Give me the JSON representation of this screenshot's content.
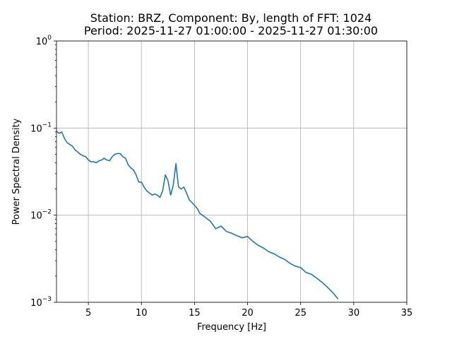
{
  "chart_data": {
    "type": "line",
    "title": "Station: BRZ, Component: By, length of FFT: 1024",
    "subtitle": "Period: 2025-11-27 01:00:00 - 2025-11-27 01:30:00",
    "xlabel": "Frequency [Hz]",
    "ylabel": "Power Spectral Density",
    "xlim": [
      2,
      35
    ],
    "ylim": [
      0.001,
      1
    ],
    "yscale": "log",
    "grid": true,
    "colors": {
      "series": "#1f77b4",
      "grid": "#b0b0b0"
    },
    "xticks": [
      {
        "value": 5,
        "label": "5"
      },
      {
        "value": 10,
        "label": "10"
      },
      {
        "value": 15,
        "label": "15"
      },
      {
        "value": 20,
        "label": "20"
      },
      {
        "value": 25,
        "label": "25"
      },
      {
        "value": 30,
        "label": "30"
      },
      {
        "value": 35,
        "label": "35"
      }
    ],
    "yticks": [
      {
        "value": 0.001,
        "base": "10",
        "exp": "−3"
      },
      {
        "value": 0.01,
        "base": "10",
        "exp": "−2"
      },
      {
        "value": 0.1,
        "base": "10",
        "exp": "−1"
      },
      {
        "value": 1,
        "base": "10",
        "exp": "0"
      }
    ],
    "series": [
      {
        "x": [
          2.0,
          2.25,
          2.5,
          2.75,
          3.0,
          3.25,
          3.5,
          3.75,
          4.0,
          4.25,
          4.5,
          4.75,
          5.0,
          5.25,
          5.5,
          5.75,
          6.0,
          6.25,
          6.5,
          6.75,
          7.0,
          7.25,
          7.5,
          7.75,
          8.0,
          8.25,
          8.5,
          8.75,
          9.0,
          9.25,
          9.5,
          9.75,
          10.0,
          10.25,
          10.5,
          10.75,
          11.0,
          11.25,
          11.5,
          11.75,
          12.0,
          12.25,
          12.5,
          12.75,
          13.0,
          13.25,
          13.5,
          13.75,
          14.0,
          14.25,
          14.5,
          14.75,
          15.0,
          15.25,
          15.5,
          15.75,
          16.0,
          16.5,
          17.0,
          17.5,
          18.0,
          18.5,
          19.0,
          19.5,
          20.0,
          20.5,
          21.0,
          21.5,
          22.0,
          22.5,
          23.0,
          23.5,
          24.0,
          24.5,
          25.0,
          25.5,
          26.0,
          26.5,
          27.0,
          27.5,
          28.0,
          28.5
        ],
        "values": [
          0.092,
          0.087,
          0.09,
          0.076,
          0.068,
          0.065,
          0.062,
          0.056,
          0.053,
          0.05,
          0.048,
          0.047,
          0.043,
          0.041,
          0.041,
          0.04,
          0.042,
          0.043,
          0.045,
          0.043,
          0.042,
          0.047,
          0.05,
          0.051,
          0.051,
          0.047,
          0.045,
          0.038,
          0.035,
          0.033,
          0.029,
          0.024,
          0.024,
          0.021,
          0.019,
          0.018,
          0.017,
          0.0175,
          0.017,
          0.016,
          0.019,
          0.029,
          0.025,
          0.017,
          0.022,
          0.039,
          0.021,
          0.02,
          0.021,
          0.018,
          0.015,
          0.014,
          0.013,
          0.012,
          0.0105,
          0.01,
          0.0095,
          0.0085,
          0.007,
          0.0075,
          0.0065,
          0.0062,
          0.0058,
          0.0055,
          0.0057,
          0.005,
          0.0045,
          0.0042,
          0.0038,
          0.0036,
          0.0033,
          0.0031,
          0.0028,
          0.0026,
          0.0025,
          0.0022,
          0.0021,
          0.0019,
          0.0017,
          0.0015,
          0.0013,
          0.0011
        ]
      }
    ]
  }
}
